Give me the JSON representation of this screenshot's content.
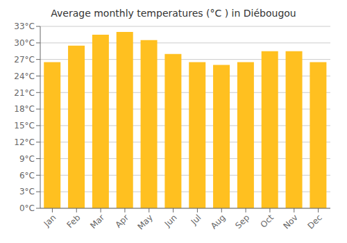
{
  "chart_data": {
    "type": "bar",
    "title": "Average monthly temperatures (°C ) in Diébougou",
    "categories": [
      "Jan",
      "Feb",
      "Mar",
      "Apr",
      "May",
      "Jun",
      "Jul",
      "Aug",
      "Sep",
      "Oct",
      "Nov",
      "Dec"
    ],
    "values": [
      26.5,
      29.5,
      31.5,
      32.0,
      30.5,
      28.0,
      26.5,
      26.0,
      26.5,
      28.5,
      28.5,
      26.5
    ],
    "color": "#FFC020",
    "ylim": [
      0,
      33
    ],
    "yticks": [
      {
        "value": 0,
        "label": "0°C"
      },
      {
        "value": 3,
        "label": "3°C"
      },
      {
        "value": 6,
        "label": "6°C"
      },
      {
        "value": 9,
        "label": "9°C"
      },
      {
        "value": 12,
        "label": "12°C"
      },
      {
        "value": 15,
        "label": "15°C"
      },
      {
        "value": 18,
        "label": "18°C"
      },
      {
        "value": 21,
        "label": "21°C"
      },
      {
        "value": 24,
        "label": "24°C"
      },
      {
        "value": 27,
        "label": "27°C"
      },
      {
        "value": 30,
        "label": "30°C"
      },
      {
        "value": 33,
        "label": "33°C"
      }
    ],
    "grid": true
  }
}
